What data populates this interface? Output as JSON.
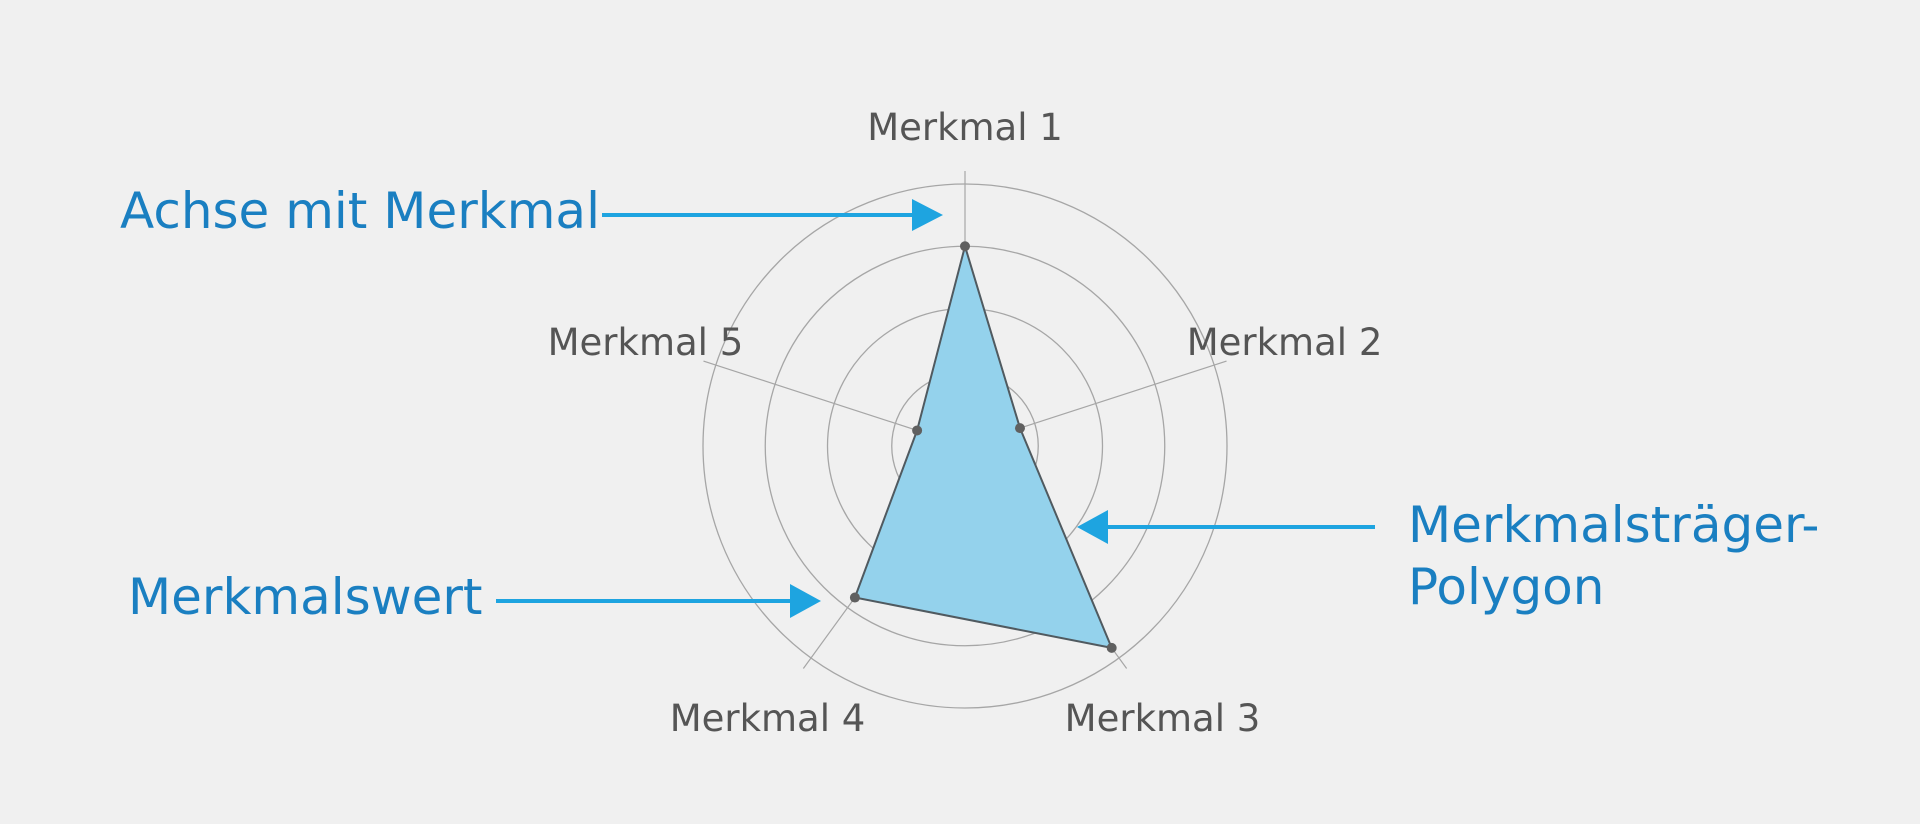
{
  "diagram": {
    "axes": [
      {
        "label": "Merkmal 1",
        "value": 0.75
      },
      {
        "label": "Merkmal 2",
        "value": 0.18
      },
      {
        "label": "Merkmal 3",
        "value": 0.95
      },
      {
        "label": "Merkmal 4",
        "value": 0.7
      },
      {
        "label": "Merkmal 5",
        "value": 0.15
      }
    ],
    "ring_count": 4,
    "callouts": {
      "axis": {
        "text": "Achse mit Merkmal"
      },
      "value": {
        "text": "Merkmalswert"
      },
      "polygon": {
        "lines": [
          "Merkmalsträger-",
          "Polygon"
        ]
      }
    },
    "colors": {
      "background": "#f0f0f0",
      "polygon_fill": "#94d2ec",
      "polygon_stroke": "#505a60",
      "grid": "#a6a6a6",
      "arrow": "#1ea4e0",
      "callout_text": "#1a7fc1",
      "label_text": "#555555"
    }
  }
}
